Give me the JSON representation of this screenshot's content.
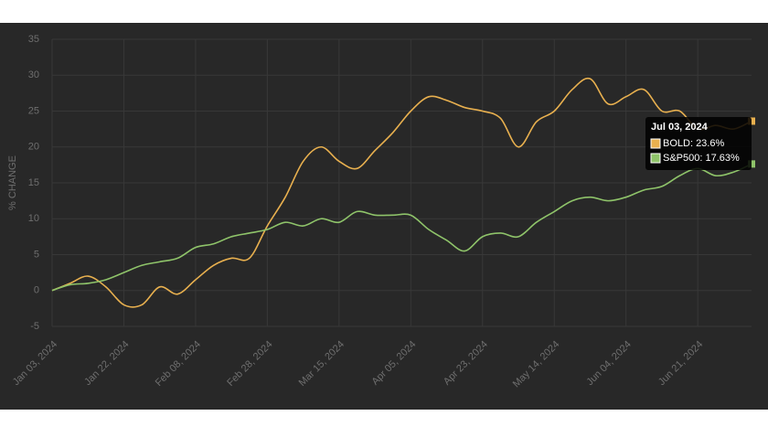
{
  "chart_data": {
    "type": "line",
    "y_label": "% CHANGE",
    "categories": [
      "Jan 03, 2024",
      null,
      null,
      null,
      "Jan 22, 2024",
      null,
      null,
      null,
      "Feb 08, 2024",
      null,
      null,
      null,
      "Feb 28, 2024",
      null,
      null,
      null,
      "Mar 15, 2024",
      null,
      null,
      null,
      "Apr 05, 2024",
      null,
      null,
      null,
      "Apr 23, 2024",
      null,
      null,
      null,
      "May 14, 2024",
      null,
      null,
      null,
      "Jun 04, 2024",
      null,
      null,
      null,
      "Jun 21, 2024",
      null,
      null,
      null
    ],
    "series": [
      {
        "name": "BOLD",
        "color": "#e8b04f",
        "values": [
          0,
          1,
          2,
          0.5,
          -2,
          -2,
          0.5,
          -0.5,
          1.5,
          3.5,
          4.5,
          4.5,
          9,
          13,
          18,
          20,
          18,
          17,
          19.5,
          22,
          25,
          27,
          26.5,
          25.5,
          25,
          24,
          20,
          23.5,
          25,
          28,
          29.5,
          26,
          27,
          28,
          25,
          25,
          22.5,
          23,
          22.5,
          23.6
        ]
      },
      {
        "name": "S&P500",
        "color": "#8fc46a",
        "values": [
          0,
          0.8,
          1,
          1.5,
          2.5,
          3.5,
          4,
          4.5,
          6,
          6.5,
          7.5,
          8,
          8.5,
          9.5,
          9,
          10,
          9.5,
          11,
          10.5,
          10.5,
          10.5,
          8.5,
          7,
          5.5,
          7.5,
          8,
          7.5,
          9.5,
          11,
          12.5,
          13,
          12.5,
          13,
          14,
          14.5,
          16,
          17,
          16,
          16.5,
          17.63
        ]
      }
    ],
    "ylim": [
      -5,
      35
    ],
    "yticks": [
      -5,
      0,
      5,
      10,
      15,
      20,
      25,
      30,
      35
    ],
    "grid": true,
    "tooltip": {
      "title": "Jul 03, 2024",
      "items": [
        "BOLD: 23.6%",
        "S&P500: 17.63%"
      ]
    }
  }
}
